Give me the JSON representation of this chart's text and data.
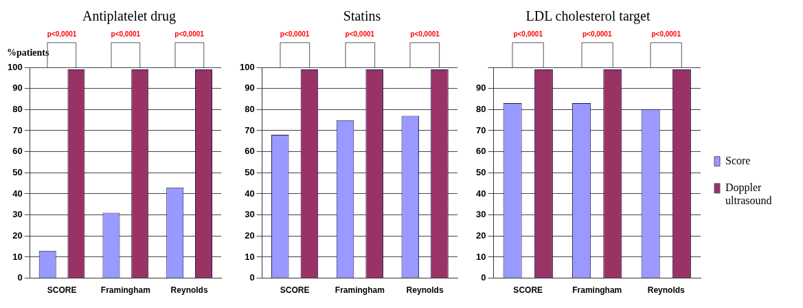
{
  "chart_data": [
    {
      "type": "bar",
      "title": "Antiplatelet drug",
      "ylabel": "%patients",
      "categories": [
        "SCORE",
        "Framingham",
        "Reynolds"
      ],
      "series": [
        {
          "color": "#9999ff",
          "values": [
            13,
            31,
            43
          ]
        },
        {
          "color": "#993366",
          "values": [
            99,
            99,
            99
          ]
        }
      ],
      "ylim": [
        0,
        100
      ],
      "yticks": [
        0,
        10,
        20,
        30,
        40,
        50,
        60,
        70,
        80,
        90,
        100
      ],
      "grid": "y",
      "annotations": [
        "p<0,0001",
        "p<0,0001",
        "p<0,0001"
      ]
    },
    {
      "type": "bar",
      "title": "Statins",
      "categories": [
        "SCORE",
        "Framingham",
        "Reynolds"
      ],
      "series": [
        {
          "color": "#9999ff",
          "values": [
            68,
            75,
            77
          ]
        },
        {
          "color": "#993366",
          "values": [
            99,
            99,
            99
          ]
        }
      ],
      "ylim": [
        0,
        100
      ],
      "yticks": [
        0,
        10,
        20,
        30,
        40,
        50,
        60,
        70,
        80,
        90,
        100
      ],
      "grid": "y",
      "annotations": [
        "p<0,0001",
        "p<0,0001",
        "p<0,0001"
      ]
    },
    {
      "type": "bar",
      "title": "LDL cholesterol target",
      "categories": [
        "SCORE",
        "Framingham",
        "Reynolds"
      ],
      "series": [
        {
          "name": "Score",
          "color": "#9999ff",
          "values": [
            83,
            83,
            80
          ]
        },
        {
          "name": "Doppler ultrasound",
          "color": "#993366",
          "values": [
            99,
            99,
            99
          ]
        }
      ],
      "ylim": [
        0,
        100
      ],
      "yticks": [
        0,
        10,
        20,
        30,
        40,
        50,
        60,
        70,
        80,
        90,
        {
          "value": 100,
          "label": null
        }
      ],
      "grid": "y",
      "legend": "right",
      "annotations": [
        "p<0,0001",
        "p<0,0001",
        "p<0,0001"
      ]
    }
  ]
}
